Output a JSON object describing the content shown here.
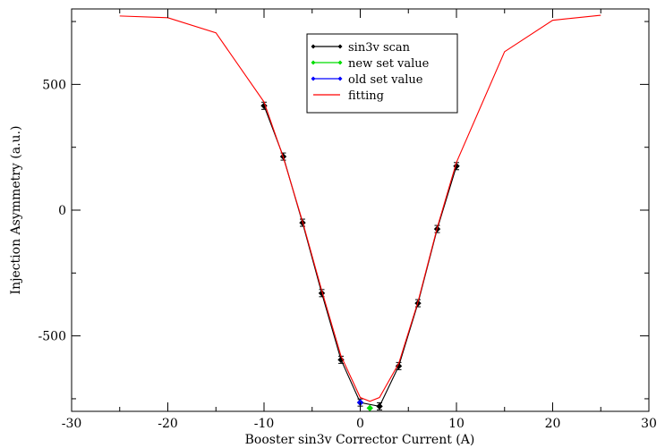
{
  "chart_data": {
    "type": "line",
    "title": "",
    "xlabel": "Booster sin3v Corrector Current (A)",
    "ylabel": "Injection Asymmetry (a.u.)",
    "xlim": [
      -30,
      30
    ],
    "ylim": [
      -800,
      800
    ],
    "xticks": [
      -30,
      -20,
      -10,
      0,
      10,
      20,
      30
    ],
    "yticks": [
      -500,
      0,
      500
    ],
    "xtick_labels": [
      "-30",
      "-20",
      "-10",
      "0",
      "10",
      "20",
      "30"
    ],
    "ytick_labels": [
      "-500",
      "0",
      "500"
    ],
    "grid": false,
    "legend_position": "top-center",
    "series": [
      {
        "name": "sin3v scan",
        "color": "#000000",
        "marker": "diamond",
        "error_bars": true,
        "points": [
          {
            "x": -10,
            "y": 415
          },
          {
            "x": -8,
            "y": 213
          },
          {
            "x": -6,
            "y": -50
          },
          {
            "x": -4,
            "y": -330
          },
          {
            "x": -2,
            "y": -595
          },
          {
            "x": 0,
            "y": -765
          },
          {
            "x": 2,
            "y": -780
          },
          {
            "x": 4,
            "y": -620
          },
          {
            "x": 6,
            "y": -370
          },
          {
            "x": 8,
            "y": -75
          },
          {
            "x": 10,
            "y": 175
          }
        ]
      },
      {
        "name": "new set value",
        "color": "#00dd00",
        "marker": "diamond",
        "error_bars": false,
        "points": [
          {
            "x": 1,
            "y": -787
          }
        ]
      },
      {
        "name": "old set value",
        "color": "#0000ff",
        "marker": "diamond",
        "error_bars": false,
        "points": [
          {
            "x": 0,
            "y": -765
          }
        ]
      },
      {
        "name": "fitting",
        "color": "#ff0000",
        "marker": "none",
        "error_bars": false,
        "points": [
          {
            "x": -25,
            "y": 772
          },
          {
            "x": -20,
            "y": 765
          },
          {
            "x": -15,
            "y": 705
          },
          {
            "x": -10,
            "y": 430
          },
          {
            "x": -8,
            "y": 210
          },
          {
            "x": -6,
            "y": -45
          },
          {
            "x": -4,
            "y": -320
          },
          {
            "x": -2,
            "y": -580
          },
          {
            "x": 0,
            "y": -745
          },
          {
            "x": 1,
            "y": -760
          },
          {
            "x": 2,
            "y": -745
          },
          {
            "x": 4,
            "y": -610
          },
          {
            "x": 6,
            "y": -365
          },
          {
            "x": 8,
            "y": -70
          },
          {
            "x": 10,
            "y": 190
          },
          {
            "x": 15,
            "y": 630
          },
          {
            "x": 20,
            "y": 755
          },
          {
            "x": 25,
            "y": 775
          }
        ]
      }
    ]
  }
}
